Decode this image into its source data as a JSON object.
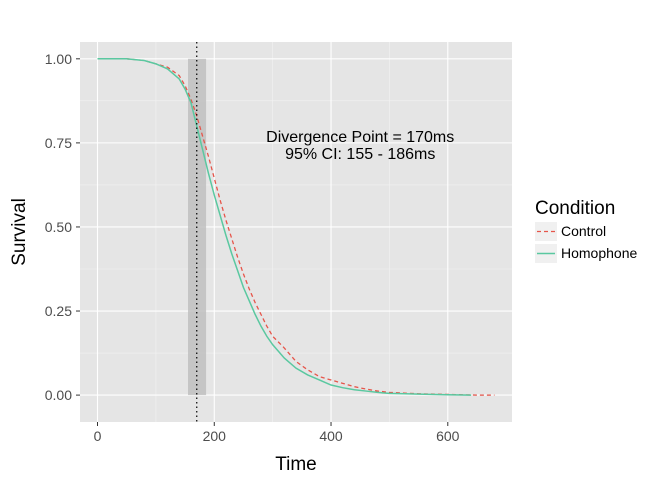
{
  "chart_data": {
    "type": "line",
    "xlabel": "Time",
    "ylabel": "Survival",
    "xlim": [
      -30,
      710
    ],
    "ylim": [
      -0.08,
      1.05
    ],
    "x_ticks": [
      0,
      200,
      400,
      600
    ],
    "x_tick_labels": [
      "0",
      "200",
      "400",
      "600"
    ],
    "y_ticks": [
      0,
      0.25,
      0.5,
      0.75,
      1.0
    ],
    "y_tick_labels": [
      "0.00",
      "0.25",
      "0.50",
      "0.75",
      "1.00"
    ],
    "grid": true,
    "legend": {
      "title": "Condition",
      "position": "right",
      "items": [
        "Control",
        "Homophone"
      ]
    },
    "divergence": {
      "point": 170,
      "ci": [
        155,
        186
      ],
      "annotation_line1": "Divergence Point = 170ms",
      "annotation_line2": "95% CI: 155 - 186ms",
      "annotation_x": 450,
      "annotation_y": 0.74
    },
    "series": [
      {
        "name": "Control",
        "color": "#e6554a",
        "dash": "dashed",
        "x": [
          0,
          50,
          80,
          100,
          120,
          140,
          150,
          160,
          170,
          180,
          190,
          200,
          210,
          220,
          230,
          240,
          250,
          260,
          270,
          280,
          290,
          300,
          320,
          340,
          360,
          380,
          400,
          420,
          440,
          460,
          480,
          500,
          550,
          600,
          650,
          680
        ],
        "y": [
          1.0,
          1.0,
          0.995,
          0.985,
          0.975,
          0.95,
          0.92,
          0.88,
          0.83,
          0.77,
          0.71,
          0.645,
          0.58,
          0.52,
          0.465,
          0.41,
          0.36,
          0.315,
          0.275,
          0.24,
          0.205,
          0.175,
          0.14,
          0.1,
          0.075,
          0.055,
          0.045,
          0.035,
          0.025,
          0.018,
          0.012,
          0.008,
          0.004,
          0.002,
          0.0,
          0.0
        ]
      },
      {
        "name": "Homophone",
        "color": "#5ac8a0",
        "dash": "solid",
        "x": [
          0,
          50,
          80,
          100,
          120,
          140,
          150,
          160,
          170,
          180,
          190,
          200,
          210,
          220,
          230,
          240,
          250,
          260,
          270,
          280,
          290,
          300,
          320,
          340,
          360,
          380,
          400,
          420,
          440,
          460,
          480,
          500,
          550,
          600,
          640
        ],
        "y": [
          1.0,
          1.0,
          0.995,
          0.985,
          0.97,
          0.94,
          0.91,
          0.87,
          0.8,
          0.73,
          0.66,
          0.595,
          0.535,
          0.475,
          0.42,
          0.37,
          0.32,
          0.28,
          0.24,
          0.205,
          0.175,
          0.15,
          0.11,
          0.08,
          0.06,
          0.045,
          0.03,
          0.022,
          0.016,
          0.012,
          0.008,
          0.005,
          0.003,
          0.001,
          0.0
        ]
      }
    ]
  }
}
